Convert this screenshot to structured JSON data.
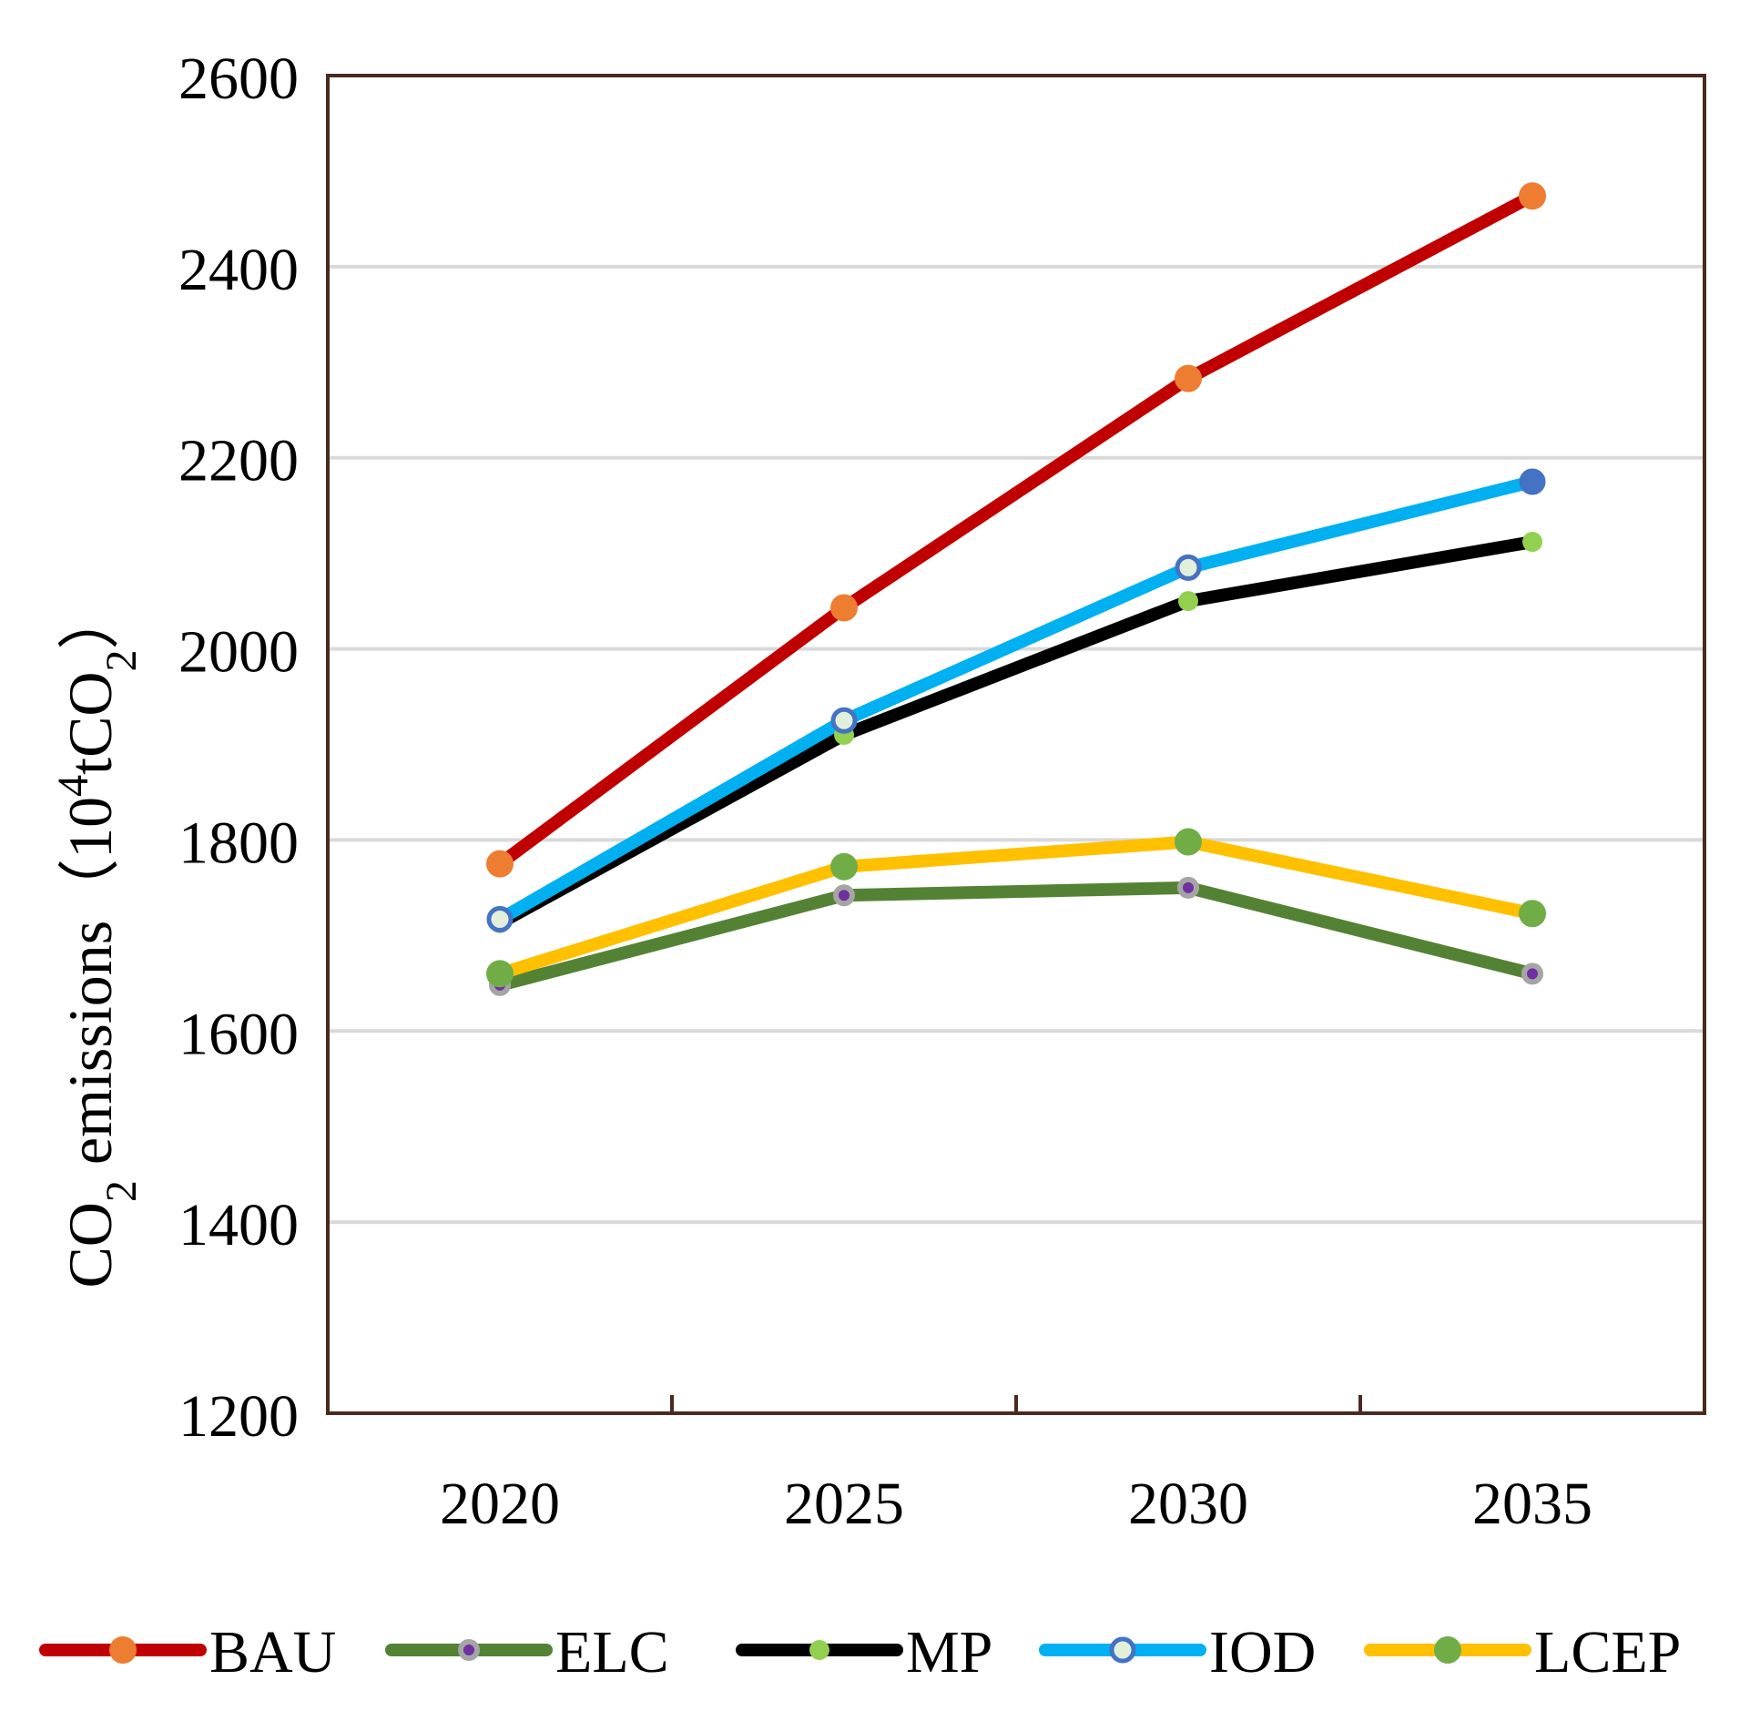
{
  "chart_data": {
    "type": "line",
    "title": "",
    "xlabel": "",
    "ylabel": {
      "main": "CO",
      "main_sub": "2",
      "main_rest": " emissions",
      "unit_open": "（10",
      "unit_sup": "4",
      "unit_mid": "tCO",
      "unit_sub": "2",
      "unit_close": "）"
    },
    "categories": [
      "2020",
      "2025",
      "2030",
      "2035"
    ],
    "ylim": [
      1200,
      2600
    ],
    "yticks": [
      1200,
      1400,
      1600,
      1800,
      2000,
      2200,
      2400,
      2600
    ],
    "y_tick_labels": [
      "1200",
      "1400",
      "1600",
      "1800",
      "2000",
      "2200",
      "2400",
      "2600"
    ],
    "grid": true,
    "legend_position": "bottom",
    "series": [
      {
        "name": "BAU",
        "values": [
          1775,
          2043,
          2283,
          2474
        ],
        "line_color": "#c00000",
        "marker_color": "#ed7d31",
        "marker_edge": "#ed7d31",
        "marker_kind": "large"
      },
      {
        "name": "ELC",
        "values": [
          1648,
          1742,
          1750,
          1660
        ],
        "line_color": "#548235",
        "marker_color": "#7030a0",
        "marker_edge": "#a5a5a5",
        "marker_kind": "small-ringed"
      },
      {
        "name": "MP",
        "values": [
          1713,
          1910,
          2050,
          2112
        ],
        "line_color": "#000000",
        "marker_color": "#92d050",
        "marker_edge": "#92d050",
        "marker_kind": "medium"
      },
      {
        "name": "IOD",
        "values": [
          1717,
          1925,
          2085,
          2175
        ],
        "line_color": "#00b0f0",
        "marker_color": "#e2efda",
        "marker_edge": "#4472c4",
        "marker_kind": "ringed"
      },
      {
        "name": "LCEP",
        "values": [
          1660,
          1772,
          1798,
          1723
        ],
        "line_color": "#ffc000",
        "marker_color": "#70ad47",
        "marker_edge": "#70ad47",
        "marker_kind": "large"
      }
    ],
    "special_markers": [
      {
        "series": "IOD",
        "index": 3,
        "marker_color": "#4472c4",
        "marker_edge": "#4472c4"
      }
    ]
  }
}
